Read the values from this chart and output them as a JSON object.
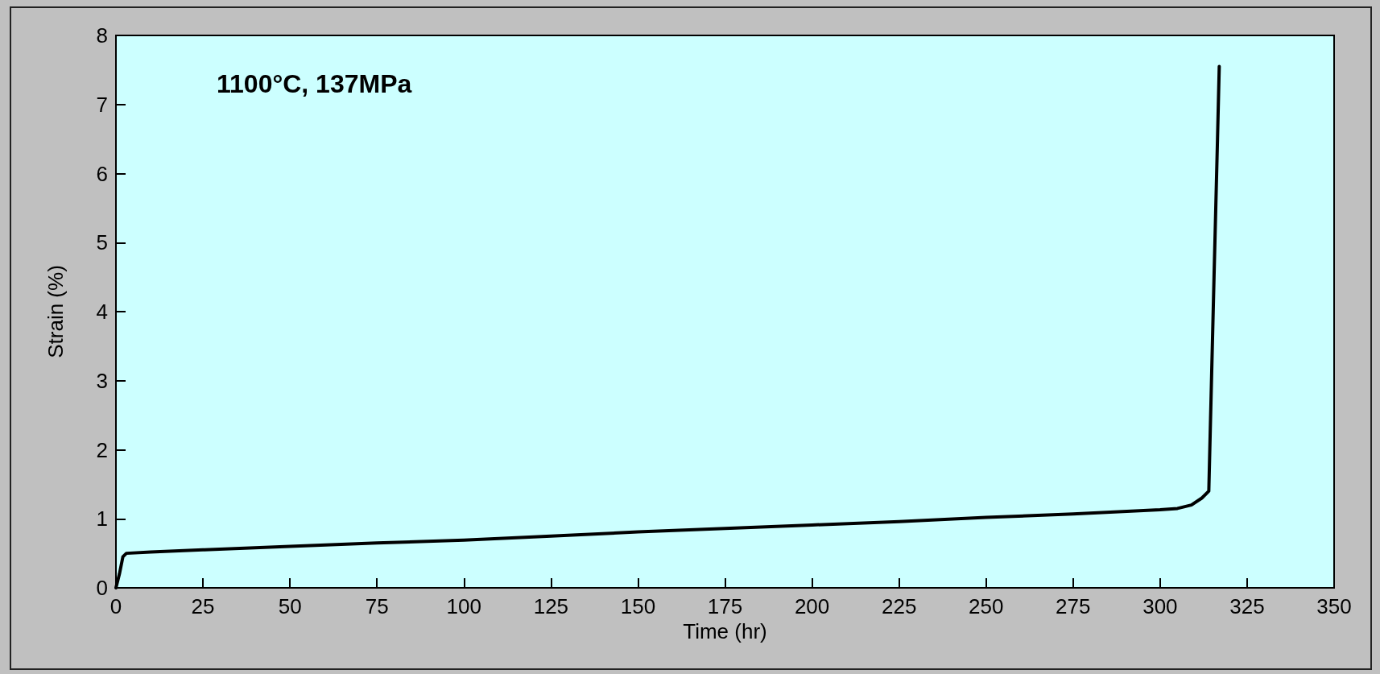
{
  "chart_data": {
    "type": "line",
    "xlabel": "Time (hr)",
    "ylabel": "Strain (%)",
    "annotations": [
      "1100°C, 137MPa"
    ],
    "series": [
      {
        "color": "#000000",
        "x": [
          0,
          1,
          2,
          3,
          10,
          25,
          50,
          75,
          100,
          125,
          150,
          175,
          200,
          225,
          250,
          275,
          300,
          305,
          309,
          312,
          314,
          314.5,
          315.5,
          316.5,
          317
        ],
        "values": [
          0,
          0.2,
          0.45,
          0.5,
          0.52,
          0.55,
          0.6,
          0.65,
          0.69,
          0.75,
          0.81,
          0.86,
          0.91,
          0.96,
          1.02,
          1.07,
          1.13,
          1.15,
          1.2,
          1.3,
          1.4,
          2.45,
          4.5,
          6.5,
          7.55
        ]
      }
    ],
    "xlim": [
      0,
      350
    ],
    "xticks": [
      0,
      25,
      50,
      75,
      100,
      125,
      150,
      175,
      200,
      225,
      250,
      275,
      300,
      325,
      350
    ],
    "ylim": [
      0,
      8
    ],
    "yticks": [
      0,
      1,
      2,
      3,
      4,
      5,
      6,
      7,
      8
    ],
    "marker": "none",
    "line_style": "solid"
  }
}
